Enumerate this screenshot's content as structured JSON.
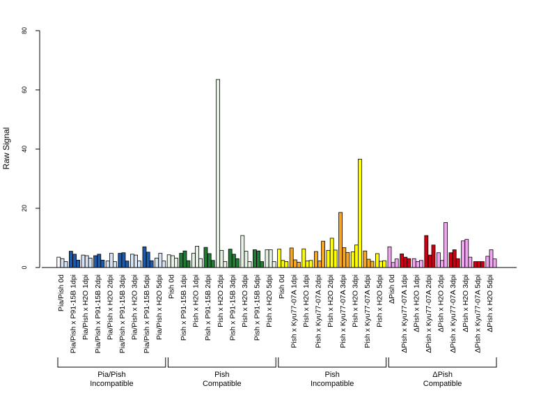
{
  "chart_data": {
    "type": "bar",
    "title": "",
    "xlabel": "",
    "ylabel": "Raw Signal",
    "ylim": [
      0,
      80
    ],
    "yticks": [
      "0",
      "20",
      "40",
      "60",
      "80"
    ],
    "grid": false,
    "legend": "none",
    "categories": [
      "Pia/Pish 0d",
      "Pia/Pish x P91-15B 1dpi",
      "Pia/Pish x H2O 1dpi",
      "Pia/Pish x P91-15B 2dpi",
      "Pia/Pish x H2O 2dpi",
      "Pia/Pish x P91-15B 3dpi",
      "Pia/Pish x H2O 3dpi",
      "Pia/Pish x P91-15B 5dpi",
      "Pia/Pish x H2O 5dpi",
      "Pish 0d",
      "Pish x P91-15B 1dpi",
      "Pish x H2O 1dpi",
      "Pish x P91-15B 2dpi",
      "Pish x H2O 2dpi",
      "Pish x P91-15B 3dpi",
      "Pish x H2O 3dpi",
      "Pish x P91-15B 5dpi",
      "Pish x H2O 5dpi",
      "Pish 0d",
      "Pish x Kyu77-07A 1dpi",
      "Pish x H2O 1dpi",
      "Pish x Kyu77-07A 2dpi",
      "Pish x H2O 2dpi",
      "Pish x Kyu77-07A 3dpi",
      "Pish x H2O 3dpi",
      "Pish x Kyu77-07A 5dpi",
      "Pish x H2O 5dpi",
      "ΔPish 0d",
      "ΔPish x Kyu77-07A 1dpi",
      "ΔPish x H2O 1dpi",
      "ΔPish x Kyu77-07A 2dpi",
      "ΔPish x H2O 2dpi",
      "ΔPish x Kyu77-07A 3dpi",
      "ΔPish x H2O 3dpi",
      "ΔPish x Kyu77-07A 5dpi",
      "ΔPish x H2O 5dpi"
    ],
    "values": [
      [
        3.5,
        3.0,
        2.0
      ],
      [
        5.5,
        4.5,
        2.5
      ],
      [
        4.2,
        4.0,
        3.2
      ],
      [
        4.0,
        4.5,
        2.5
      ],
      [
        2.2,
        4.8,
        2.0
      ],
      [
        4.8,
        5.0,
        2.2
      ],
      [
        4.5,
        4.2,
        2.2
      ],
      [
        7.0,
        5.2,
        2.3
      ],
      [
        3.2,
        4.8,
        2.2
      ],
      [
        4.3,
        4.0,
        3.2
      ],
      [
        4.8,
        5.6,
        2.3
      ],
      [
        4.8,
        7.2,
        3.0
      ],
      [
        6.8,
        4.7,
        2.4
      ],
      [
        63.5,
        5.8,
        2.0
      ],
      [
        6.2,
        4.5,
        3.0
      ],
      [
        10.8,
        5.5,
        2.0
      ],
      [
        6.0,
        5.6,
        2.0
      ],
      [
        6.0,
        6.0,
        2.0
      ],
      [
        6.2,
        2.4,
        2.0
      ],
      [
        6.6,
        2.6,
        1.8
      ],
      [
        6.3,
        2.2,
        2.4
      ],
      [
        5.4,
        2.2,
        8.9
      ],
      [
        5.8,
        9.9,
        5.9
      ],
      [
        18.6,
        6.7,
        5.1
      ],
      [
        5.3,
        7.6,
        36.6
      ],
      [
        5.6,
        2.8,
        2.1
      ],
      [
        4.7,
        2.1,
        2.3
      ],
      [
        7.0,
        1.7,
        2.9
      ],
      [
        4.6,
        3.5,
        3.0
      ],
      [
        3.0,
        2.0,
        2.4
      ],
      [
        10.8,
        4.2,
        7.6
      ],
      [
        5.0,
        2.4,
        15.2
      ],
      [
        5.0,
        6.0,
        3.0
      ],
      [
        9.0,
        9.5,
        3.5
      ],
      [
        2.0,
        2.0,
        2.0
      ],
      [
        3.8,
        6.0,
        2.9
      ]
    ],
    "colors": [
      [
        "#ffffff",
        "#d6e3f2",
        "#d6e3f2"
      ],
      [
        "#1f5aa8",
        "#1f5aa8",
        "#1f5aa8"
      ],
      [
        "#d6e3f2",
        "#d6e3f2",
        "#d6e3f2"
      ],
      [
        "#1f5aa8",
        "#1f5aa8",
        "#1f5aa8"
      ],
      [
        "#d6e3f2",
        "#d6e3f2",
        "#d6e3f2"
      ],
      [
        "#1f5aa8",
        "#1f5aa8",
        "#1f5aa8"
      ],
      [
        "#d6e3f2",
        "#d6e3f2",
        "#d6e3f2"
      ],
      [
        "#1f5aa8",
        "#1f5aa8",
        "#1f5aa8"
      ],
      [
        "#d6e3f2",
        "#d6e3f2",
        "#d6e3f2"
      ],
      [
        "#e6f2e4",
        "#e6f2e4",
        "#e6f2e4"
      ],
      [
        "#227a36",
        "#227a36",
        "#227a36"
      ],
      [
        "#e6f2e4",
        "#e6f2e4",
        "#e6f2e4"
      ],
      [
        "#227a36",
        "#227a36",
        "#227a36"
      ],
      [
        "#e6f2e4",
        "#e6f2e4",
        "#e6f2e4"
      ],
      [
        "#227a36",
        "#227a36",
        "#227a36"
      ],
      [
        "#e6f2e4",
        "#e6f2e4",
        "#e6f2e4"
      ],
      [
        "#227a36",
        "#227a36",
        "#227a36"
      ],
      [
        "#e6f2e4",
        "#e6f2e4",
        "#e6f2e4"
      ],
      [
        "#ffff00",
        "#ffff00",
        "#ffff00"
      ],
      [
        "#f5a623",
        "#f5a623",
        "#f5a623"
      ],
      [
        "#ffff00",
        "#ffff00",
        "#ffff00"
      ],
      [
        "#f5a623",
        "#f5a623",
        "#f5a623"
      ],
      [
        "#ffff00",
        "#ffff00",
        "#ffff00"
      ],
      [
        "#f5a623",
        "#f5a623",
        "#f5a623"
      ],
      [
        "#ffff00",
        "#ffff00",
        "#ffff00"
      ],
      [
        "#f5a623",
        "#f5a623",
        "#f5a623"
      ],
      [
        "#ffff00",
        "#ffff00",
        "#ffff00"
      ],
      [
        "#f0a6f0",
        "#f0a6f0",
        "#f0a6f0"
      ],
      [
        "#cc0014",
        "#cc0014",
        "#cc0014"
      ],
      [
        "#f0a6f0",
        "#f0a6f0",
        "#f0a6f0"
      ],
      [
        "#cc0014",
        "#cc0014",
        "#cc0014"
      ],
      [
        "#f0a6f0",
        "#f0a6f0",
        "#f0a6f0"
      ],
      [
        "#cc0014",
        "#cc0014",
        "#cc0014"
      ],
      [
        "#f0a6f0",
        "#f0a6f0",
        "#f0a6f0"
      ],
      [
        "#cc0014",
        "#cc0014",
        "#cc0014"
      ],
      [
        "#f0a6f0",
        "#f0a6f0",
        "#f0a6f0"
      ]
    ],
    "groups": [
      {
        "line1": "Pia/Pish",
        "line2": "Incompatible",
        "first": 0,
        "last": 8
      },
      {
        "line1": "Pish",
        "line2": "Compatible",
        "first": 9,
        "last": 17
      },
      {
        "line1": "Pish",
        "line2": "Incompatible",
        "first": 18,
        "last": 26
      },
      {
        "line1": "ΔPish",
        "line2": "Compatible",
        "first": 27,
        "last": 35
      }
    ]
  }
}
